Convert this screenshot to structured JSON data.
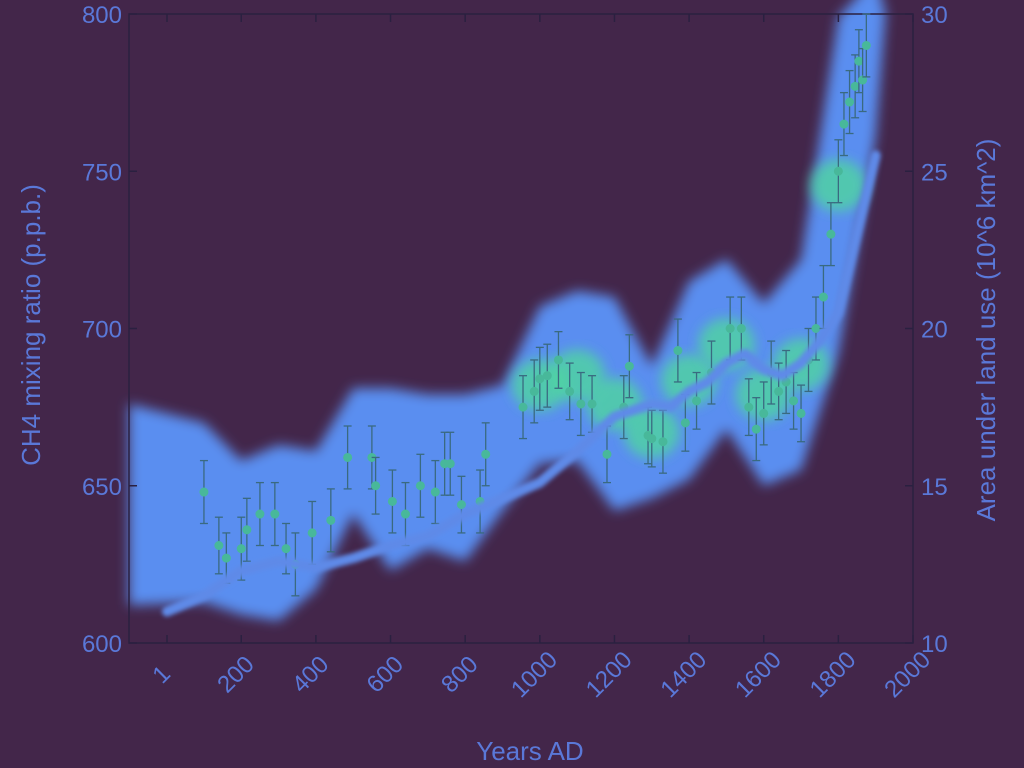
{
  "chart_data": {
    "type": "scatter",
    "xlabel": "Years AD",
    "ylabel_left": "CH4 mixing ratio (p.p.b.)",
    "ylabel_right": "Area under land use (10^6 km^2)",
    "xlim": [
      1,
      2000
    ],
    "ylim_left": [
      600,
      800
    ],
    "ylim_right": [
      10,
      30
    ],
    "x_ticks": [
      "1",
      "200",
      "400",
      "600",
      "800",
      "1000",
      "1200",
      "1400",
      "1600",
      "1800",
      "2000"
    ],
    "y_left_ticks": [
      "600",
      "650",
      "700",
      "750",
      "800"
    ],
    "y_right_ticks": [
      "10",
      "15",
      "20",
      "25",
      "30"
    ],
    "series": [
      {
        "axis": "left",
        "x": [
          100,
          140,
          160,
          200,
          215,
          250,
          290,
          320,
          345,
          390,
          440,
          485,
          550,
          560,
          605,
          640,
          680,
          720,
          745,
          760,
          790,
          840,
          855,
          955,
          985,
          1000,
          1020,
          1050,
          1080,
          1110,
          1140,
          1180,
          1225,
          1240,
          1290,
          1300,
          1330,
          1370,
          1390,
          1420,
          1460,
          1510,
          1540,
          1560,
          1580,
          1600,
          1620,
          1640,
          1660,
          1680,
          1700,
          1720,
          1740,
          1760,
          1780,
          1800,
          1815,
          1830,
          1845,
          1855,
          1865,
          1875
        ],
        "y": [
          648,
          631,
          627,
          630,
          636,
          641,
          641,
          630,
          625,
          635,
          639,
          659,
          659,
          650,
          645,
          641,
          650,
          648,
          657,
          657,
          644,
          645,
          660,
          675,
          680,
          684,
          685,
          690,
          680,
          676,
          676,
          660,
          675,
          688,
          666,
          665,
          664,
          693,
          670,
          677,
          686,
          700,
          700,
          675,
          668,
          673,
          686,
          680,
          683,
          677,
          673,
          690,
          700,
          710,
          730,
          750,
          765,
          772,
          777,
          785,
          779,
          790
        ],
        "y_error": [
          10,
          9,
          8,
          10,
          10,
          10,
          10,
          8,
          10,
          10,
          10,
          10,
          10,
          9,
          10,
          10,
          10,
          10,
          10,
          10,
          9,
          10,
          10,
          10,
          10,
          10,
          10,
          9,
          9,
          10,
          9,
          9,
          10,
          10,
          9,
          9,
          10,
          10,
          9,
          9,
          10,
          10,
          10,
          9,
          10,
          10,
          10,
          9,
          10,
          9,
          9,
          10,
          10,
          10,
          10,
          10,
          10,
          10,
          10,
          10,
          10,
          10
        ]
      },
      {
        "axis": "right",
        "type": "line",
        "x": [
          1,
          100,
          200,
          300,
          400,
          500,
          600,
          700,
          800,
          900,
          1000,
          1100,
          1200,
          1300,
          1350,
          1400,
          1450,
          1500,
          1550,
          1600,
          1650,
          1700,
          1750,
          1800,
          1850,
          1900
        ],
        "y": [
          11.0,
          11.5,
          12.3,
          12.6,
          12.4,
          12.7,
          13.1,
          13.4,
          14.1,
          14.6,
          15.1,
          16.1,
          17.2,
          17.6,
          17.5,
          18.0,
          18.3,
          18.9,
          19.2,
          18.7,
          18.5,
          18.9,
          19.6,
          20.5,
          23.0,
          25.5
        ]
      }
    ],
    "legend": "none",
    "grid": false
  }
}
